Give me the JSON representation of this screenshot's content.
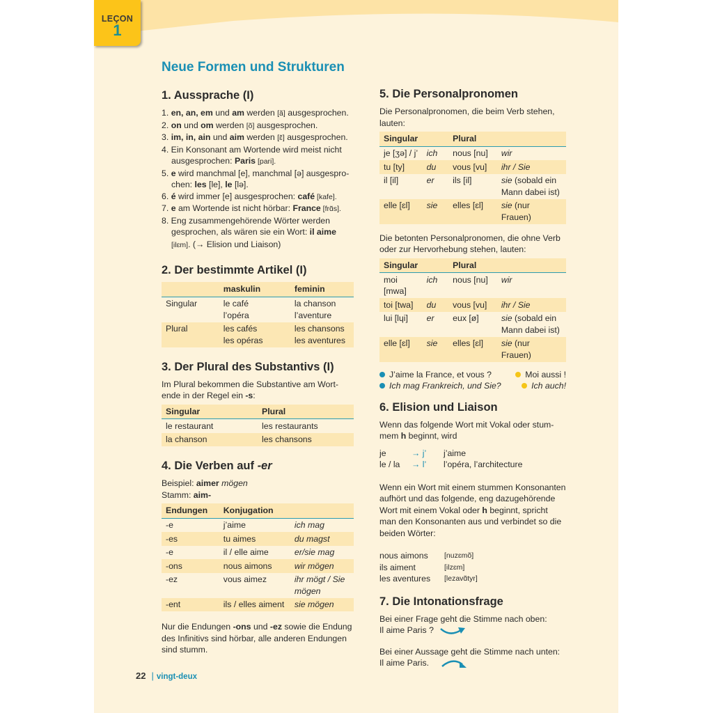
{
  "colors": {
    "accent": "#1a8fb4",
    "tab": "#fcc419",
    "row_shade": "#fce7b4",
    "bullet_blue": "#1a8fb4",
    "bullet_yellow": "#f5c518"
  },
  "lesson": {
    "label": "LEÇON",
    "number": "1"
  },
  "title": "Neue Formen und Strukturen",
  "s1": {
    "heading": "1. Aussprache (I)",
    "items": [
      [
        [
          "1. ",
          ""
        ],
        [
          "en, an, em",
          "b"
        ],
        [
          " und ",
          ""
        ],
        [
          "am",
          "b"
        ],
        [
          " werden ",
          ""
        ],
        [
          "[ã]",
          "p"
        ],
        [
          " ausgesprochen.",
          ""
        ]
      ],
      [
        [
          "2. ",
          ""
        ],
        [
          "on",
          "b"
        ],
        [
          " und ",
          ""
        ],
        [
          "om",
          "b"
        ],
        [
          " werden ",
          ""
        ],
        [
          "[õ]",
          "p"
        ],
        [
          " ausgesprochen.",
          ""
        ]
      ],
      [
        [
          "3. ",
          ""
        ],
        [
          "im, in, ain",
          "b"
        ],
        [
          " und ",
          ""
        ],
        [
          "aim",
          "b"
        ],
        [
          " werden ",
          ""
        ],
        [
          "[ɛ̃]",
          "p"
        ],
        [
          " ausgesprochen.",
          ""
        ]
      ],
      [
        [
          "4. Ein Konsonant am Wortende wird meist nicht ausgesprochen: ",
          ""
        ],
        [
          "Paris",
          "b"
        ],
        [
          " [pari].",
          "p"
        ]
      ],
      [
        [
          "5. ",
          ""
        ],
        [
          "e",
          "b"
        ],
        [
          " wird manchmal [e], manchmal [ə] ausgespro­chen: ",
          ""
        ],
        [
          "les",
          "b"
        ],
        [
          " [le], ",
          ""
        ],
        [
          "le",
          "b"
        ],
        [
          " [lə].",
          ""
        ]
      ],
      [
        [
          "6. ",
          ""
        ],
        [
          "é",
          "b"
        ],
        [
          " wird immer [e] ausgesprochen: ",
          ""
        ],
        [
          "café",
          "b"
        ],
        [
          " [kafe].",
          "p"
        ]
      ],
      [
        [
          "7. ",
          ""
        ],
        [
          "e",
          "b"
        ],
        [
          " am Wortende ist nicht hörbar: ",
          ""
        ],
        [
          "France",
          "b"
        ],
        [
          " [frɑ̃s].",
          "p"
        ]
      ],
      [
        [
          "8. Eng zusammengehörende Wörter werden gesprochen, als wären sie ein Wort: ",
          ""
        ],
        [
          "il aime",
          "b"
        ],
        [
          " [ilɛm]",
          "p"
        ],
        [
          ". (→ Elision und Liaison)",
          ""
        ]
      ]
    ]
  },
  "s2": {
    "heading": "2. Der bestimmte Artikel (I)",
    "headers": [
      "",
      "maskulin",
      "feminin"
    ],
    "rows": [
      [
        "Singular",
        "le café\nl’opéra",
        "la chanson\nl’aventure"
      ],
      [
        "Plural",
        "les cafés\nles opéras",
        "les chansons\nles aventures"
      ]
    ]
  },
  "s3": {
    "heading": "3. Der Plural des Substantivs (I)",
    "intro": [
      [
        "Im Plural bekommen die Substantive am Wort­ende in der Regel ein ",
        ""
      ],
      [
        "-s",
        "b"
      ],
      [
        ":",
        ""
      ]
    ],
    "headers": [
      "Singular",
      "Plural"
    ],
    "rows": [
      [
        "le restaurant",
        "les restaurants"
      ],
      [
        "la chanson",
        "les chansons"
      ]
    ]
  },
  "s4": {
    "heading": "4. Die Verben auf ",
    "heading_suffix": "-er",
    "example": [
      [
        "Beispiel: ",
        ""
      ],
      [
        "aimer",
        "b"
      ],
      [
        " mögen",
        "i"
      ]
    ],
    "stem": [
      [
        "Stamm: ",
        ""
      ],
      [
        "aim-",
        "b"
      ]
    ],
    "headers": [
      "Endungen",
      "Konjugation",
      ""
    ],
    "rows": [
      [
        "-e",
        "j’aime",
        "ich mag"
      ],
      [
        "-es",
        "tu aimes",
        "du magst"
      ],
      [
        "-e",
        "il / elle aime",
        "er/sie mag"
      ],
      [
        "-ons",
        "nous aimons",
        "wir mögen"
      ],
      [
        "-ez",
        "vous aimez",
        "ihr mögt / Sie mögen"
      ],
      [
        "-ent",
        "ils / elles aiment",
        "sie mögen"
      ]
    ],
    "note": [
      [
        "Nur die Endungen ",
        ""
      ],
      [
        "-ons",
        "b"
      ],
      [
        " und ",
        ""
      ],
      [
        "-ez",
        "b"
      ],
      [
        " sowie die Endung des Infinitivs sind hörbar, alle anderen Endungen sind stumm.",
        ""
      ]
    ]
  },
  "s5": {
    "heading": "5. Die Personalpronomen",
    "intro1": "Die Personalpronomen, die beim Verb stehen, lauten:",
    "headers": [
      "Singular",
      "",
      "Plural",
      ""
    ],
    "rows1": [
      [
        "je [ʒə] / j’",
        "ich",
        "nous [nu]",
        "wir"
      ],
      [
        "tu [ty]",
        "du",
        "vous [vu]",
        "ihr / Sie"
      ],
      [
        "il [il]",
        "er",
        "ils [il]",
        "sie (sobald ein Mann dabei ist)"
      ],
      [
        "elle [ɛl]",
        "sie",
        "elles [ɛl]",
        "sie (nur Frauen)"
      ]
    ],
    "intro2": "Die betonten Personalpronomen, die ohne Verb oder zur Hervorhebung stehen, lauten:",
    "rows2": [
      [
        "moi [mwa]",
        "ich",
        "nous [nu]",
        "wir"
      ],
      [
        "toi [twa]",
        "du",
        "vous [vu]",
        "ihr / Sie"
      ],
      [
        "lui [lɥi]",
        "er",
        "eux [ø]",
        "sie (sobald ein Mann dabei ist)"
      ],
      [
        "elle [ɛl]",
        "sie",
        "elles [ɛl]",
        "sie (nur Frauen)"
      ]
    ],
    "dialog": [
      [
        "J’aime la France, et vous ?",
        "Moi aussi !"
      ],
      [
        "Ich mag Frankreich, und Sie?",
        "Ich auch!"
      ]
    ]
  },
  "s6": {
    "heading": "6. Elision und Liaison",
    "intro": [
      [
        "Wenn das folgende Wort mit Vokal oder stum­mem ",
        ""
      ],
      [
        "h",
        "b"
      ],
      [
        " beginnt, wird",
        ""
      ]
    ],
    "elision": [
      [
        "je",
        "→ j’",
        "j’aime"
      ],
      [
        "le / la",
        "→ l’",
        "l’opéra, l’architecture"
      ]
    ],
    "liaison_text": [
      [
        "Wenn ein Wort mit einem stummen Konsonan­ten aufhört und das folgende, eng dazugehö­rende Wort mit einem Vokal oder ",
        ""
      ],
      [
        "h",
        "b"
      ],
      [
        " beginnt, spricht man den Konsonanten aus und verbin­det so die beiden Wörter:",
        ""
      ]
    ],
    "liaison": [
      [
        "nous aimons",
        "[nuzɛmõ]"
      ],
      [
        "ils aiment",
        "[ilzɛm]"
      ],
      [
        "les aventures",
        "[lezavɑ̃tyr]"
      ]
    ]
  },
  "s7": {
    "heading": "7. Die Intonationsfrage",
    "q_text": "Bei einer Frage geht die Stimme nach oben:",
    "q_example": "Il aime Paris ?",
    "a_text": "Bei einer Aussage geht die Stimme nach unten:",
    "a_example": "Il aime Paris."
  },
  "footer": {
    "page_number": "22",
    "page_word": "vingt-deux"
  }
}
